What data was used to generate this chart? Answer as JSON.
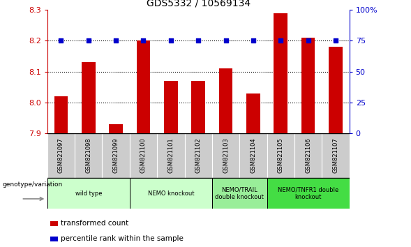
{
  "title": "GDS5332 / 10569134",
  "samples": [
    "GSM821097",
    "GSM821098",
    "GSM821099",
    "GSM821100",
    "GSM821101",
    "GSM821102",
    "GSM821103",
    "GSM821104",
    "GSM821105",
    "GSM821106",
    "GSM821107"
  ],
  "bar_values": [
    8.02,
    8.13,
    7.93,
    8.2,
    8.07,
    8.07,
    8.11,
    8.03,
    8.29,
    8.21,
    8.18
  ],
  "dot_values": [
    75,
    75,
    75,
    75,
    75,
    75,
    75,
    75,
    75,
    75,
    75
  ],
  "ylim_left": [
    7.9,
    8.3
  ],
  "ylim_right": [
    0,
    100
  ],
  "yticks_left": [
    7.9,
    8.0,
    8.1,
    8.2,
    8.3
  ],
  "yticks_right": [
    0,
    25,
    50,
    75,
    100
  ],
  "bar_color": "#cc0000",
  "dot_color": "#0000cc",
  "groups": [
    {
      "label": "wild type",
      "start": 0,
      "end": 2,
      "color": "#ccffcc"
    },
    {
      "label": "NEMO knockout",
      "start": 3,
      "end": 5,
      "color": "#ccffcc"
    },
    {
      "label": "NEMO/TRAIL\ndouble knockout",
      "start": 6,
      "end": 7,
      "color": "#99ee99"
    },
    {
      "label": "NEMO/TNFR1 double\nknockout",
      "start": 8,
      "end": 10,
      "color": "#44dd44"
    }
  ],
  "legend_bar_label": "transformed count",
  "legend_dot_label": "percentile rank within the sample",
  "genotype_label": "genotype/variation",
  "tick_label_color_left": "#cc0000",
  "tick_label_color_right": "#0000cc",
  "sample_bg_color": "#cccccc",
  "arrow_color": "#888888"
}
